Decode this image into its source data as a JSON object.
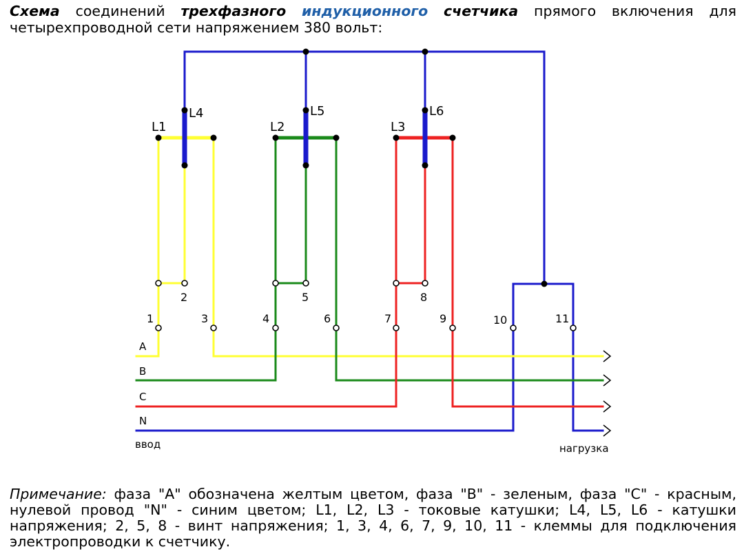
{
  "heading": {
    "part1": "Схема",
    "part2": " соединений ",
    "part3": "трехфазного",
    "part4": " ",
    "part5": "индукционного",
    "part6": " ",
    "part7": "счетчика",
    "part8": " прямого включения для четырехпроводной сети напряжением 380 вольт:"
  },
  "diagram": {
    "coils": {
      "current": [
        "L1",
        "L2",
        "L3"
      ],
      "voltage": [
        "L4",
        "L5",
        "L6"
      ]
    },
    "terminals": [
      "1",
      "2",
      "3",
      "4",
      "5",
      "6",
      "7",
      "8",
      "9",
      "10",
      "11"
    ],
    "lines": [
      "A",
      "B",
      "C",
      "N"
    ],
    "input_label": "ввод",
    "load_label": "нагрузка",
    "colors": {
      "phase_a": "#ffff33",
      "phase_b": "#1a8a1a",
      "phase_c": "#ee2222",
      "neutral": "#1a1acc"
    }
  },
  "note": {
    "label": "Примечание:",
    "text": " фаза \"А\" обозначена желтым цветом, фаза \"В\" - зеленым, фаза \"С\" - красным, нулевой провод \"N\" - синим цветом; L1, L2, L3 - токовые катушки; L4, L5, L6 - катушки напряжения; 2, 5, 8 - винт напряжения; 1, 3, 4, 6, 7, 9, 10, 11 - клеммы для подключения электропроводки к счетчику."
  }
}
